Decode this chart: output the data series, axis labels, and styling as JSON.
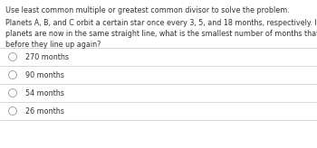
{
  "background_color": "#ffffff",
  "instruction": "Use least common multiple or greatest common divisor to solve the problem.",
  "question": "Planets A, B, and C orbit a certain star once every 3, 5, and 18 months, respectively. If the three\nplanets are now in the same straight line, what is the smallest number of months that must pass\nbefore they line up again?",
  "options": [
    "270 months",
    "90 months",
    "54 months",
    "26 months"
  ],
  "divider_color": "#c8c8c8",
  "text_color": "#333333",
  "instruction_fontsize": 5.8,
  "question_fontsize": 5.8,
  "option_fontsize": 5.8,
  "fig_width": 3.5,
  "fig_height": 1.64,
  "dpi": 100
}
